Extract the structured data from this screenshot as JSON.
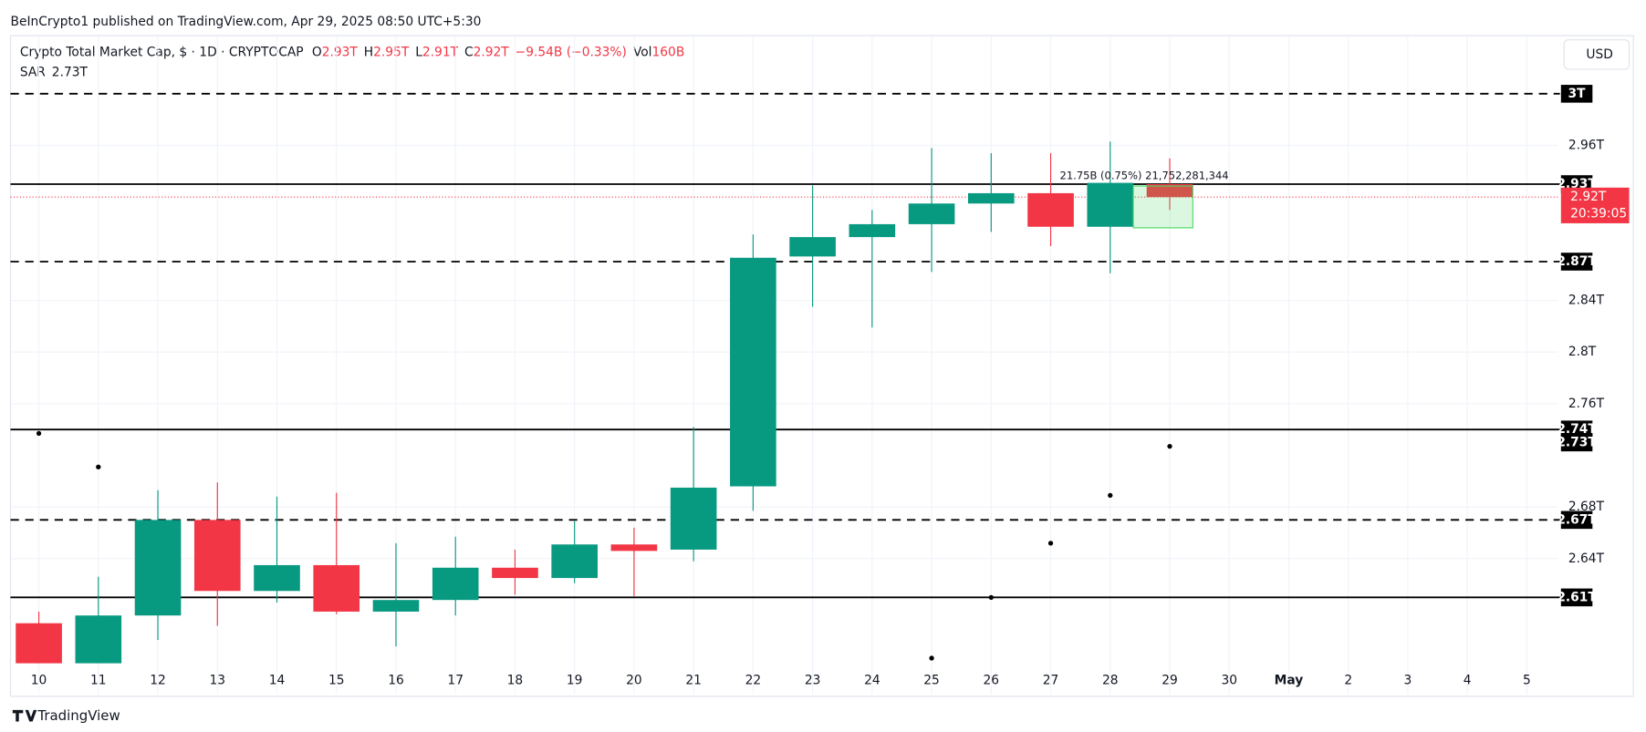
{
  "chart_data": {
    "type": "candlestick",
    "attribution": "BeInCrypto1 published on TradingView.com, Apr 29, 2025 08:50 UTC+5:30",
    "title": "Crypto Total Market Cap, $ · 1D · CRYPTOCAP",
    "legend_ohlc": [
      {
        "key": "O",
        "value": 2.93,
        "label": "2.93T"
      },
      {
        "key": "H",
        "value": 2.95,
        "label": "2.95T"
      },
      {
        "key": "L",
        "value": 2.91,
        "label": "2.91T"
      },
      {
        "key": "C",
        "value": 2.92,
        "label": "2.92T"
      }
    ],
    "change": "−9.54B (−0.33%)",
    "volume_key": "Vol",
    "volume": "160B",
    "indicator": {
      "name": "SAR",
      "value": 2.73,
      "label": "2.73T"
    },
    "currency": "USD",
    "brand": "TradingView",
    "measure_label": "21.75B (0.75%) 21,752,281,344",
    "categories": [
      "10",
      "11",
      "12",
      "13",
      "14",
      "15",
      "16",
      "17",
      "18",
      "19",
      "20",
      "21",
      "22",
      "23",
      "24",
      "25",
      "26",
      "27",
      "28",
      "29",
      "30",
      "May",
      "2",
      "3",
      "4",
      "5"
    ],
    "open": [
      2.59,
      2.559,
      2.596,
      2.67,
      2.615,
      2.635,
      2.599,
      2.608,
      2.633,
      2.625,
      2.651,
      2.647,
      2.696,
      2.874,
      2.889,
      2.899,
      2.915,
      2.923,
      2.897,
      2.93,
      null,
      null,
      null,
      null,
      null,
      null
    ],
    "high": [
      2.599,
      2.626,
      2.693,
      2.699,
      2.688,
      2.691,
      2.652,
      2.657,
      2.647,
      2.669,
      2.664,
      2.742,
      2.891,
      2.929,
      2.91,
      2.958,
      2.954,
      2.954,
      2.963,
      2.95,
      null,
      null,
      null,
      null,
      null,
      null
    ],
    "low": [
      2.559,
      2.559,
      2.577,
      2.588,
      2.606,
      2.597,
      2.572,
      2.596,
      2.612,
      2.621,
      2.611,
      2.638,
      2.677,
      2.835,
      2.819,
      2.862,
      2.893,
      2.882,
      2.861,
      2.91,
      null,
      null,
      null,
      null,
      null,
      null
    ],
    "close": [
      2.559,
      2.596,
      2.67,
      2.615,
      2.635,
      2.599,
      2.608,
      2.633,
      2.625,
      2.651,
      2.646,
      2.695,
      2.873,
      2.889,
      2.899,
      2.915,
      2.923,
      2.897,
      2.931,
      2.92,
      null,
      null,
      null,
      null,
      null,
      null
    ],
    "sar": [
      2.737,
      2.711,
      null,
      null,
      null,
      null,
      null,
      null,
      null,
      null,
      null,
      null,
      null,
      null,
      null,
      2.563,
      2.61,
      2.652,
      2.689,
      2.727,
      null,
      null,
      null,
      null,
      null,
      null
    ],
    "up_color": "#089981",
    "down_color": "#f23645",
    "ylim": [
      2.535,
      3.045
    ],
    "yticks": [
      {
        "value": 2.64,
        "label": "2.64T"
      },
      {
        "value": 2.68,
        "label": "2.68T"
      },
      {
        "value": 2.76,
        "label": "2.76T"
      },
      {
        "value": 2.8,
        "label": "2.8T"
      },
      {
        "value": 2.84,
        "label": "2.84T"
      },
      {
        "value": 2.96,
        "label": "2.96T"
      }
    ],
    "levels": [
      {
        "value": 3,
        "label": "3T",
        "style": "dashed"
      },
      {
        "value": 2.93,
        "label": "2.93T",
        "style": "solid"
      },
      {
        "value": 2.87,
        "label": "2.87T",
        "style": "dashed"
      },
      {
        "value": 2.74,
        "label": "2.74T",
        "style": "solid"
      },
      {
        "value": 2.67,
        "label": "2.67T",
        "style": "dashed"
      },
      {
        "value": 2.61,
        "label": "2.61T",
        "style": "solid"
      }
    ],
    "last_price": {
      "value": 2.92,
      "label": "2.92T",
      "countdown": "20:39:05"
    },
    "grid": true
  }
}
